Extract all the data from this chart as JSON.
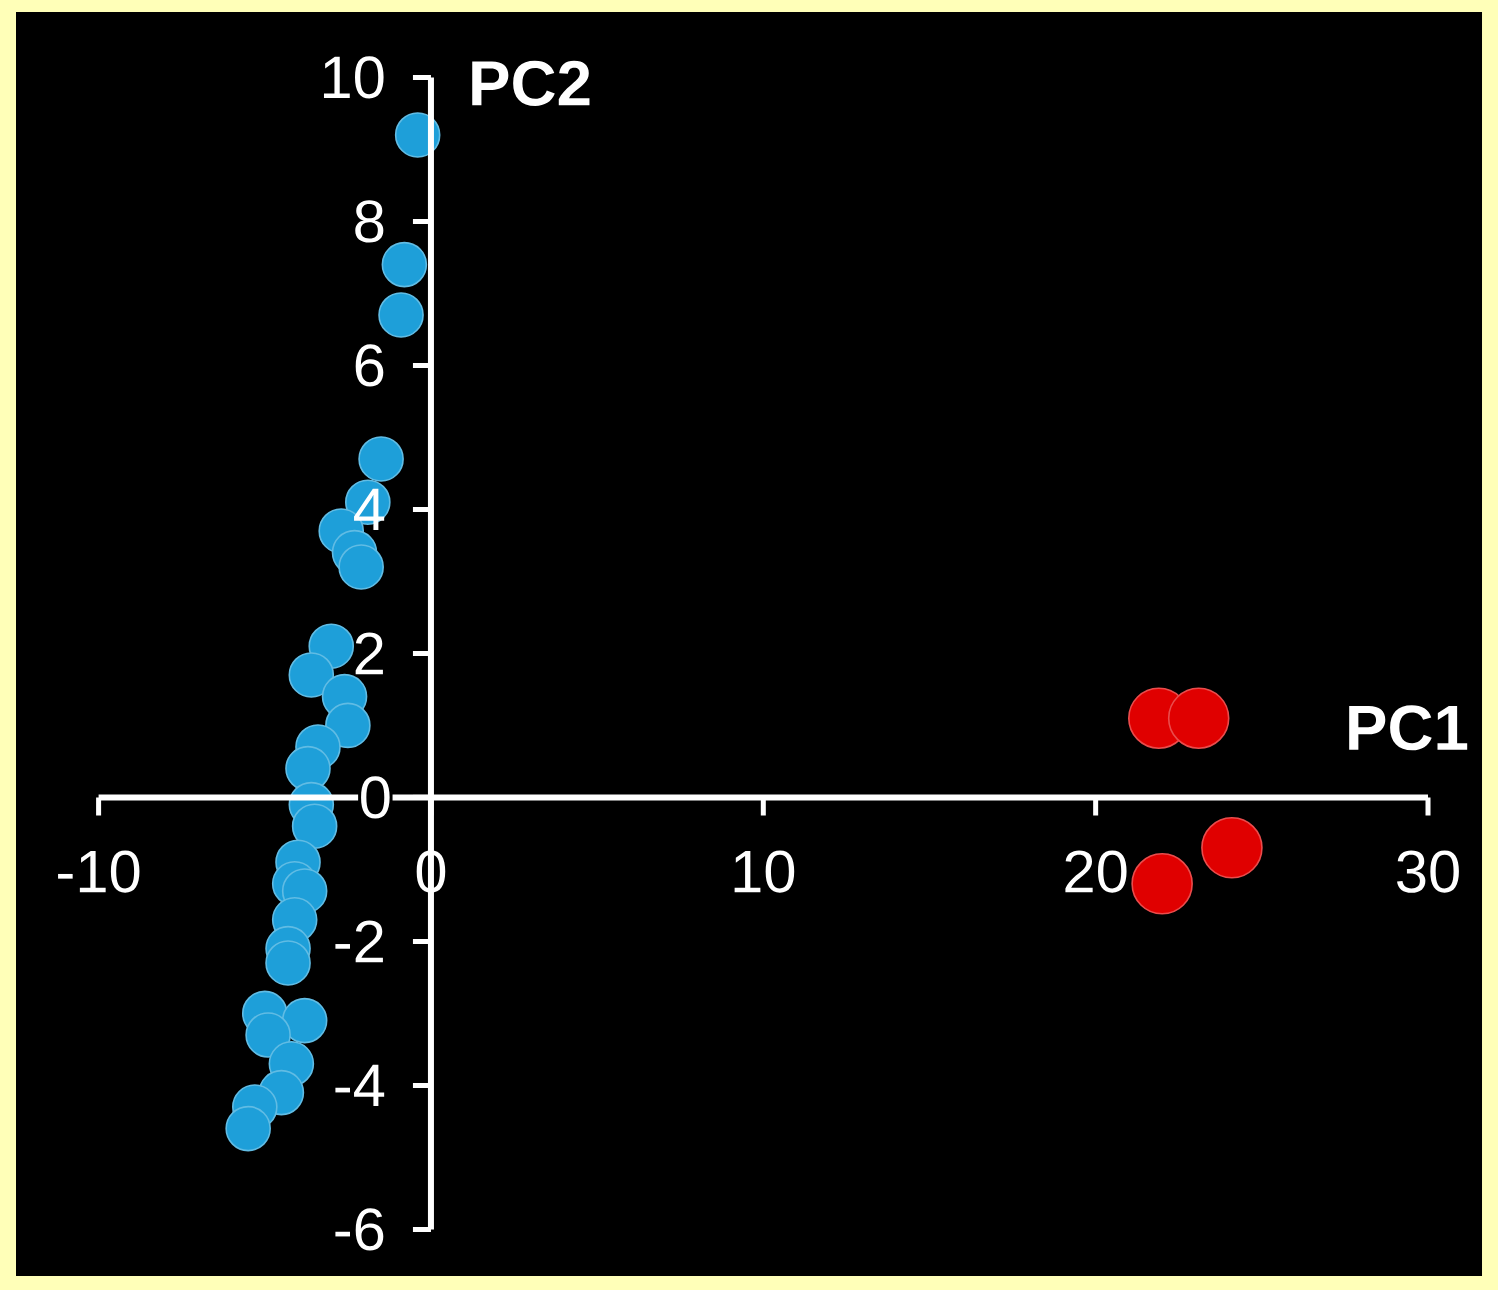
{
  "chart_data": {
    "type": "scatter",
    "xlabel": "PC1",
    "ylabel": "PC2",
    "xlim": [
      -10,
      30
    ],
    "ylim": [
      -6,
      10
    ],
    "xticks": [
      -10,
      0,
      10,
      20,
      30
    ],
    "yticks": [
      -6,
      -4,
      -2,
      0,
      2,
      4,
      6,
      8,
      10
    ],
    "grid": false,
    "marker": "circle",
    "series": [
      {
        "color": "#1e9fd9",
        "x": [
          -0.4,
          -0.8,
          -0.9,
          -1.5,
          -1.9,
          -2.7,
          -2.3,
          -2.1,
          -3.0,
          -3.6,
          -2.6,
          -2.5,
          -3.4,
          -3.7,
          -3.6,
          -3.5,
          -4.0,
          -4.1,
          -3.8,
          -4.1,
          -4.3,
          -4.3,
          -5.0,
          -3.8,
          -4.9,
          -4.2,
          -4.5,
          -5.3,
          -5.5
        ],
        "values": [
          9.2,
          7.4,
          6.7,
          4.7,
          4.1,
          3.7,
          3.4,
          3.2,
          2.1,
          1.7,
          1.4,
          1.0,
          0.7,
          0.4,
          -0.1,
          -0.4,
          -0.9,
          -1.2,
          -1.3,
          -1.7,
          -2.1,
          -2.3,
          -3.0,
          -3.1,
          -3.3,
          -3.7,
          -4.1,
          -4.3,
          -4.6
        ]
      },
      {
        "color": "#e00000",
        "x": [
          21.9,
          23.1,
          24.1,
          22.0
        ],
        "values": [
          1.1,
          1.1,
          -0.7,
          -1.2
        ]
      }
    ]
  }
}
